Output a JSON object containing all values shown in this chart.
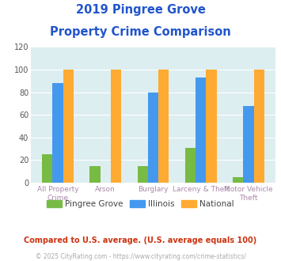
{
  "title_line1": "2019 Pingree Grove",
  "title_line2": "Property Crime Comparison",
  "categories_line1": [
    "All Property Crime",
    "Arson",
    "Burglary",
    "Larceny & Theft",
    "Motor Vehicle Theft"
  ],
  "xtick_labels": [
    "All Property\nCrime",
    "Arson",
    "Burglary",
    "Larceny & Theft",
    "Motor Vehicle\nTheft"
  ],
  "pingree_grove": [
    25,
    15,
    15,
    31,
    5
  ],
  "illinois": [
    88,
    0,
    80,
    93,
    68
  ],
  "national": [
    100,
    100,
    100,
    100,
    100
  ],
  "color_pingree": "#77bb44",
  "color_illinois": "#4499ee",
  "color_national": "#ffaa33",
  "title_color": "#2255cc",
  "axis_bg_color": "#ddeef0",
  "xlabel_color": "#aa88aa",
  "legend_label_color": "#444444",
  "footer_text": "Compared to U.S. average. (U.S. average equals 100)",
  "footer_color": "#cc3311",
  "copyright_text": "© 2025 CityRating.com - https://www.cityrating.com/crime-statistics/",
  "copyright_color": "#aaaaaa",
  "ylim": [
    0,
    120
  ],
  "yticks": [
    0,
    20,
    40,
    60,
    80,
    100,
    120
  ],
  "bar_width": 0.22
}
